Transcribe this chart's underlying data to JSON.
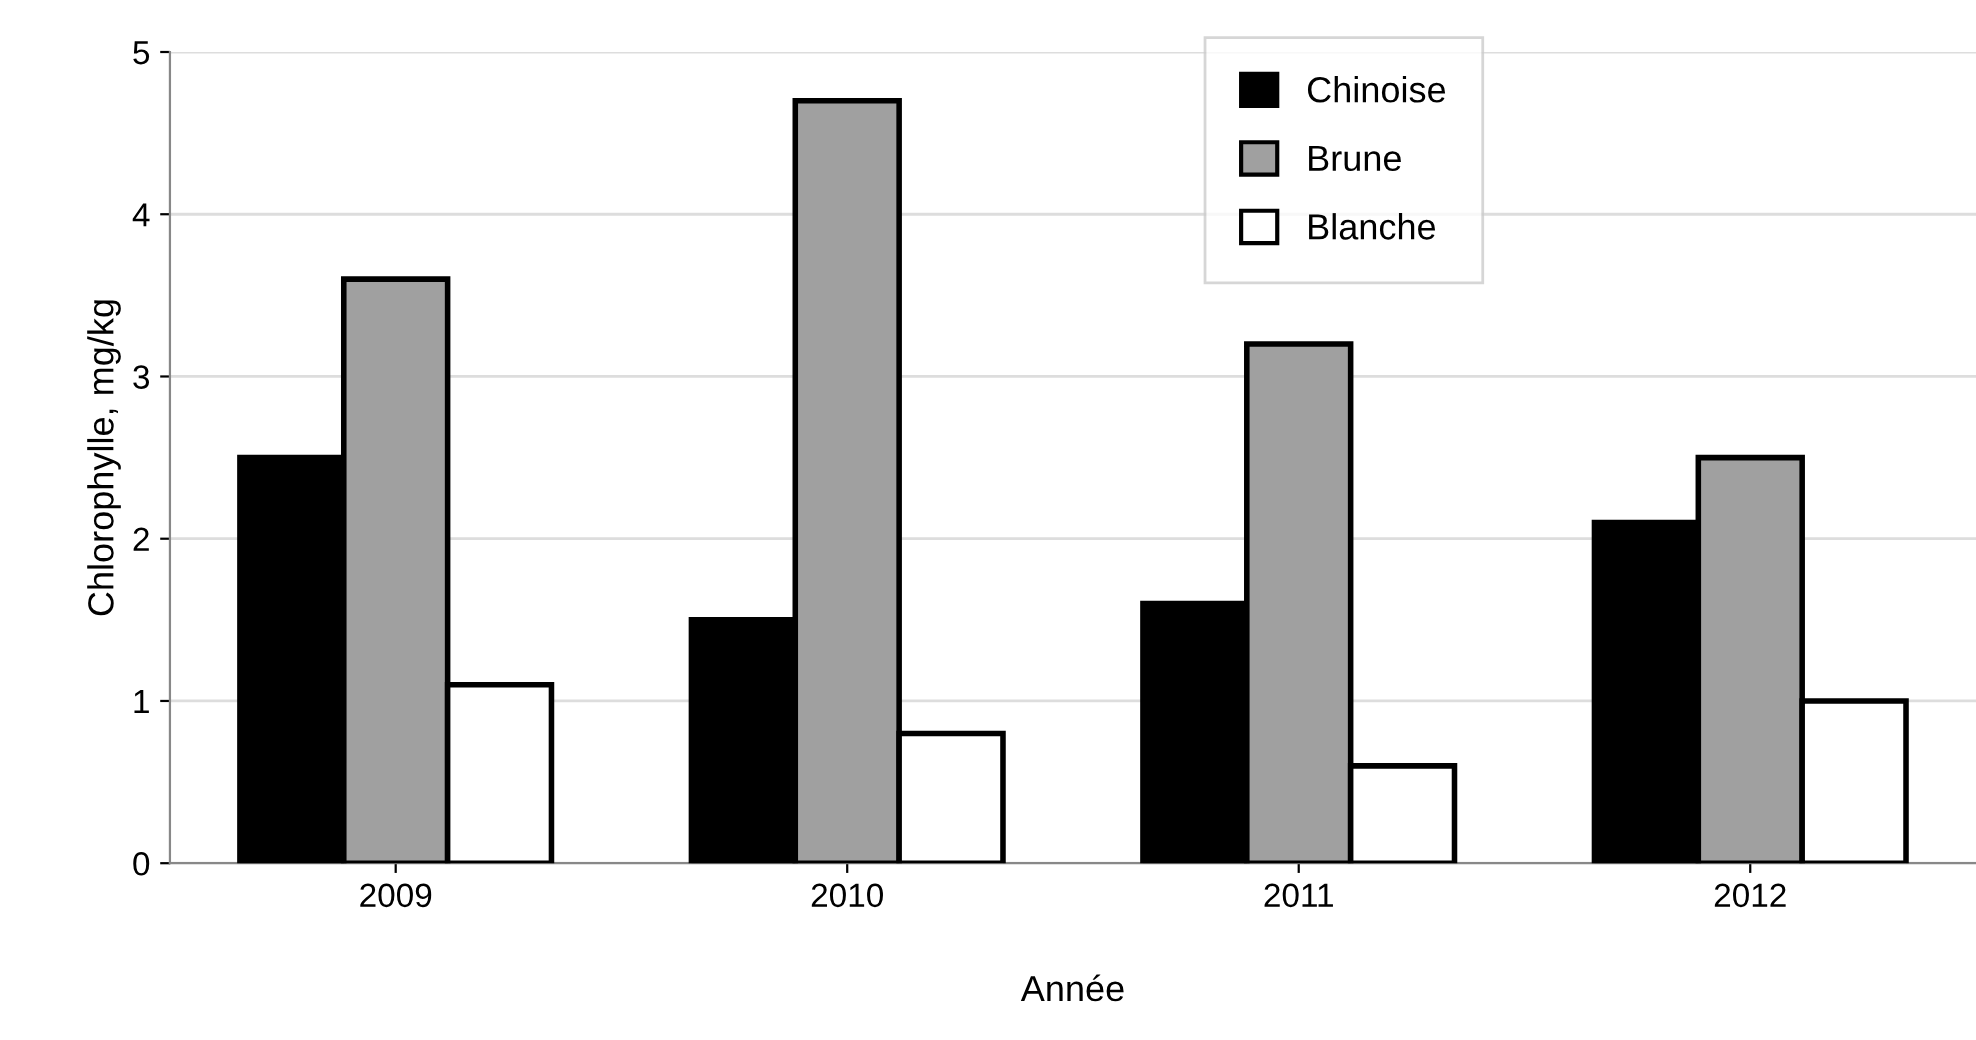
{
  "chart_data": {
    "type": "bar",
    "xlabel": "Année",
    "ylabel": "Chlorophylle, mg/kg",
    "categories": [
      "2009",
      "2010",
      "2011",
      "2012"
    ],
    "series": [
      {
        "name": "Chinoise",
        "color": "#000000",
        "values": [
          2.5,
          1.5,
          1.6,
          2.1
        ]
      },
      {
        "name": "Brune",
        "color": "#a0a0a0",
        "values": [
          3.6,
          4.7,
          3.2,
          2.5
        ]
      },
      {
        "name": "Blanche",
        "color": "#ffffff",
        "values": [
          1.1,
          0.8,
          0.6,
          1.0
        ]
      }
    ],
    "ylim": [
      0,
      5
    ],
    "yticks": [
      0,
      1,
      2,
      3,
      4,
      5
    ],
    "grid": "y",
    "legend": "top"
  }
}
